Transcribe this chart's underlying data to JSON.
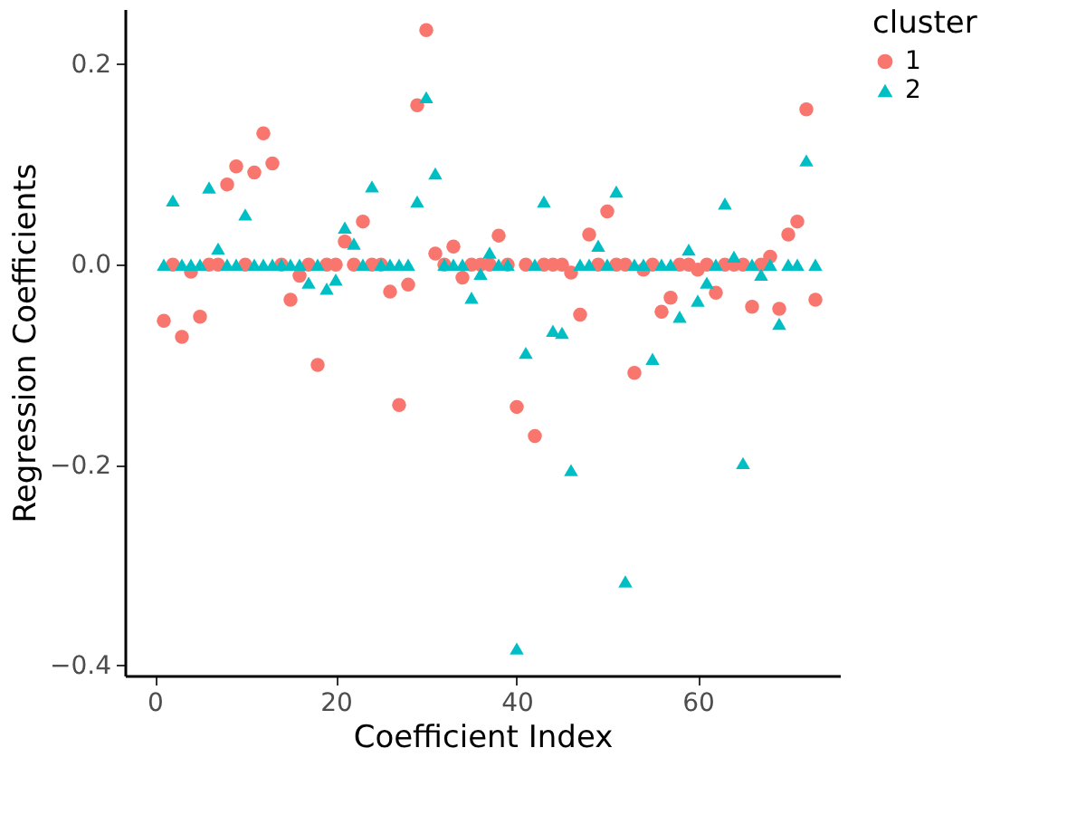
{
  "chart_data": {
    "type": "scatter",
    "xlabel": "Coefficient Index",
    "ylabel": "Regression Coefficients",
    "legend_title": "cluster",
    "legend": "right",
    "grid": false,
    "x": [
      1,
      2,
      3,
      4,
      5,
      6,
      7,
      8,
      9,
      10,
      11,
      12,
      13,
      14,
      15,
      16,
      17,
      18,
      19,
      20,
      21,
      22,
      23,
      24,
      25,
      26,
      27,
      28,
      29,
      30,
      31,
      32,
      33,
      34,
      35,
      36,
      37,
      38,
      39,
      40,
      41,
      42,
      43,
      44,
      45,
      46,
      47,
      48,
      49,
      50,
      51,
      52,
      53,
      54,
      55,
      56,
      57,
      58,
      59,
      60,
      61,
      62,
      63,
      64,
      65,
      66,
      67,
      68,
      69,
      70,
      71,
      72,
      73
    ],
    "xlim": [
      -3.3,
      75.7
    ],
    "xticks": [
      0,
      20,
      40,
      60
    ],
    "ylim": [
      -0.41,
      0.255
    ],
    "yticks": [
      {
        "value": -0.4,
        "label": "−0.4"
      },
      {
        "value": -0.2,
        "label": "−0.2"
      },
      {
        "value": 0,
        "label": "0.0"
      },
      {
        "value": 0.2,
        "label": "0.2"
      }
    ],
    "series": [
      {
        "name": "1",
        "color": "#f8766d",
        "marker": "circle",
        "values": [
          -0.056,
          0,
          -0.072,
          -0.007,
          -0.052,
          0,
          0,
          0.08,
          0.098,
          0,
          0.092,
          0.131,
          0.101,
          0,
          -0.035,
          -0.011,
          0,
          -0.1,
          0,
          0,
          0.023,
          0,
          0.043,
          0,
          0,
          -0.027,
          -0.14,
          -0.02,
          0.159,
          0.234,
          0.011,
          0,
          0.018,
          -0.013,
          0,
          0,
          0,
          0.029,
          0,
          -0.142,
          0,
          -0.171,
          0,
          0,
          0,
          -0.008,
          -0.05,
          0.03,
          0,
          0.053,
          0,
          0,
          -0.108,
          -0.005,
          0,
          -0.047,
          -0.033,
          0,
          0,
          -0.005,
          0,
          -0.028,
          0,
          0,
          0,
          -0.042,
          0,
          0.008,
          -0.044,
          0.03,
          0.043,
          0.155,
          -0.035
        ]
      },
      {
        "name": "2",
        "color": "#00bfc4",
        "marker": "triangle",
        "values": [
          0,
          0.064,
          0,
          0,
          0,
          0.077,
          0.016,
          0,
          0,
          0.05,
          0,
          0,
          0,
          0,
          0,
          0,
          -0.018,
          0,
          -0.024,
          -0.015,
          0.037,
          0.021,
          0,
          0.078,
          0,
          0,
          0,
          0,
          0.063,
          0.167,
          0.091,
          0,
          0,
          0,
          -0.033,
          -0.009,
          0.012,
          0,
          0,
          -0.383,
          -0.088,
          0,
          0.063,
          -0.066,
          -0.068,
          -0.205,
          0,
          0,
          0.019,
          0,
          0.073,
          -0.316,
          0,
          0,
          -0.094,
          0,
          0,
          -0.052,
          0.015,
          -0.036,
          -0.018,
          0,
          0.061,
          0.008,
          -0.198,
          0,
          -0.01,
          0,
          -0.059,
          0,
          0,
          0.104,
          0
        ]
      }
    ]
  }
}
